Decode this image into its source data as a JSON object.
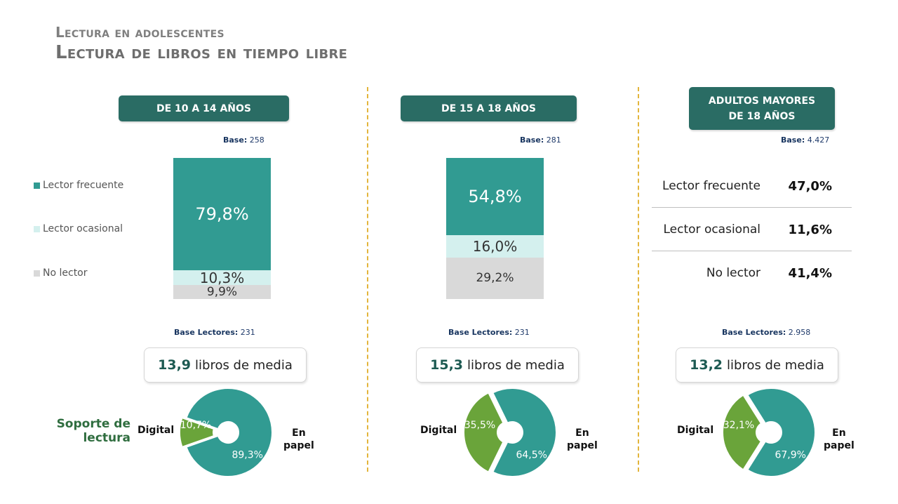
{
  "titles": {
    "line1": "Lectura en adolescentes",
    "line2": "Lectura de libros en tiempo libre"
  },
  "legend": {
    "frequent": "Lector frecuente",
    "occasional": "Lector ocasional",
    "non": "No lector"
  },
  "colors": {
    "frequent": "#319b92",
    "occasional": "#d4f0ee",
    "non": "#d9d9d9",
    "digital": "#6aa43a",
    "paper": "#319b92",
    "header": "#2a6c64",
    "divider": "#e3b53c"
  },
  "panels": [
    {
      "header": "DE 10 A 14 AÑOS",
      "base_label": "Base:",
      "base_value": "258",
      "base_lectores_label": "Base Lectores:",
      "base_lectores_value": "231",
      "media_value": "13,9",
      "media_text": "libros de media",
      "digital_label": "Digital",
      "paper_label_1": "En",
      "paper_label_2": "papel"
    },
    {
      "header": "DE 15 A 18 AÑOS",
      "base_label": "Base:",
      "base_value": "281",
      "base_lectores_label": "Base Lectores:",
      "base_lectores_value": "231",
      "media_value": "15,3",
      "media_text": "libros de media",
      "digital_label": "Digital",
      "paper_label_1": "En",
      "paper_label_2": "papel"
    },
    {
      "header_1": "ADULTOS MAYORES",
      "header_2": "DE 18 AÑOS",
      "base_label": "Base:",
      "base_value": "4.427",
      "base_lectores_label": "Base Lectores:",
      "base_lectores_value": "2.958",
      "media_value": "13,2",
      "media_text": "libros de media",
      "digital_label": "Digital",
      "paper_label_1": "En",
      "paper_label_2": "papel",
      "rows": [
        {
          "label": "Lector frecuente",
          "value": "47,0%"
        },
        {
          "label": "Lector ocasional",
          "value": "11,6%"
        },
        {
          "label": "No lector",
          "value": "41,4%"
        }
      ]
    }
  ],
  "soporte": {
    "line1": "Soporte de",
    "line2": "lectura"
  },
  "chart_data": [
    {
      "type": "bar",
      "stacked": true,
      "title": "DE 10 A 14 AÑOS",
      "series": [
        {
          "name": "Lector frecuente",
          "value": 79.8,
          "label": "79,8%"
        },
        {
          "name": "Lector ocasional",
          "value": 10.3,
          "label": "10,3%"
        },
        {
          "name": "No lector",
          "value": 9.9,
          "label": "9,9%"
        }
      ]
    },
    {
      "type": "bar",
      "stacked": true,
      "title": "DE 15 A 18 AÑOS",
      "series": [
        {
          "name": "Lector frecuente",
          "value": 54.8,
          "label": "54,8%"
        },
        {
          "name": "Lector ocasional",
          "value": 16.0,
          "label": "16,0%"
        },
        {
          "name": "No lector",
          "value": 29.2,
          "label": "29,2%"
        }
      ]
    },
    {
      "type": "pie",
      "title": "DE 10 A 14 AÑOS",
      "slices": [
        {
          "name": "Digital",
          "value": 10.7,
          "label": "10,7%"
        },
        {
          "name": "En papel",
          "value": 89.3,
          "label": "89,3%"
        }
      ]
    },
    {
      "type": "pie",
      "title": "DE 15 A 18 AÑOS",
      "slices": [
        {
          "name": "Digital",
          "value": 35.5,
          "label": "35,5%"
        },
        {
          "name": "En papel",
          "value": 64.5,
          "label": "64,5%"
        }
      ]
    },
    {
      "type": "pie",
      "title": "ADULTOS MAYORES DE 18 AÑOS",
      "slices": [
        {
          "name": "Digital",
          "value": 32.1,
          "label": "32,1%"
        },
        {
          "name": "En papel",
          "value": 67.9,
          "label": "67,9%"
        }
      ]
    }
  ]
}
